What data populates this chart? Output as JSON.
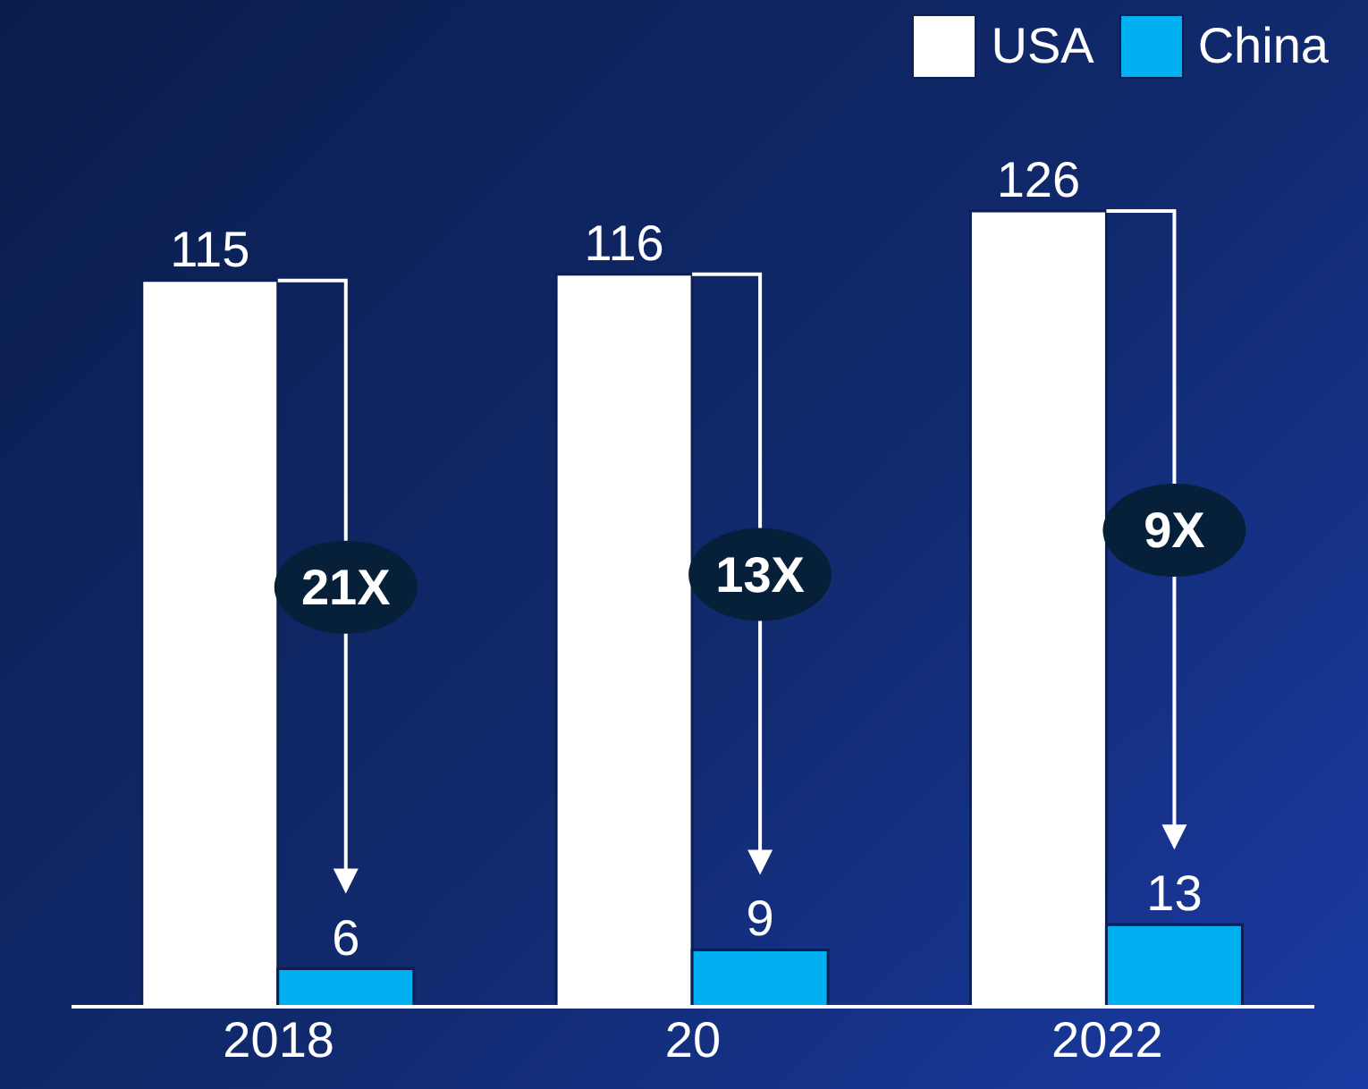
{
  "chart_data": {
    "type": "bar",
    "categories": [
      "2018",
      "20",
      "2022"
    ],
    "series": [
      {
        "name": "USA",
        "color": "#ffffff",
        "values": [
          115,
          116,
          126
        ]
      },
      {
        "name": "China",
        "color": "#00b0f0",
        "values": [
          6,
          9,
          13
        ]
      }
    ],
    "data_labels": true,
    "legend": "top right",
    "annotations": [
      "21X",
      "13X",
      "9X"
    ]
  }
}
